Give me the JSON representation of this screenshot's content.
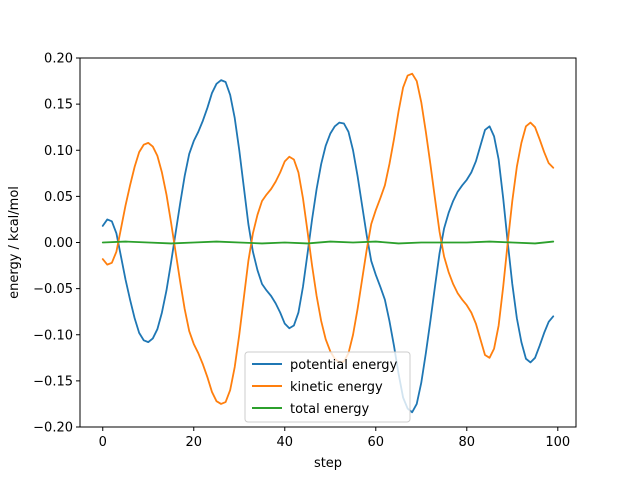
{
  "chart_data": {
    "type": "line",
    "title": "",
    "xlabel": "step",
    "ylabel": "energy / kcal/mol",
    "xlim": [
      -5,
      104
    ],
    "ylim": [
      -0.2,
      0.2
    ],
    "xticks": [
      0,
      20,
      40,
      60,
      80,
      100
    ],
    "yticks": [
      -0.2,
      -0.15,
      -0.1,
      -0.05,
      0.0,
      0.05,
      0.1,
      0.15,
      0.2
    ],
    "ytick_labels": [
      "−0.20",
      "−0.15",
      "−0.10",
      "−0.05",
      "0.00",
      "0.05",
      "0.10",
      "0.15",
      "0.20"
    ],
    "grid": false,
    "legend_position": "lower center",
    "series": [
      {
        "name": "potential energy",
        "color": "#1f77b4",
        "x": [
          0,
          1,
          2,
          3,
          4,
          5,
          6,
          7,
          8,
          9,
          10,
          11,
          12,
          13,
          14,
          15,
          16,
          17,
          18,
          19,
          20,
          21,
          22,
          23,
          24,
          25,
          26,
          27,
          28,
          29,
          30,
          31,
          32,
          33,
          34,
          35,
          36,
          37,
          38,
          39,
          40,
          41,
          42,
          43,
          44,
          45,
          46,
          47,
          48,
          49,
          50,
          51,
          52,
          53,
          54,
          55,
          56,
          57,
          58,
          59,
          60,
          61,
          62,
          63,
          64,
          65,
          66,
          67,
          68,
          69,
          70,
          71,
          72,
          73,
          74,
          75,
          76,
          77,
          78,
          79,
          80,
          81,
          82,
          83,
          84,
          85,
          86,
          87,
          88,
          89,
          90,
          91,
          92,
          93,
          94,
          95,
          96,
          97,
          98,
          99
        ],
        "values": [
          0.018,
          0.025,
          0.023,
          0.01,
          -0.015,
          -0.04,
          -0.062,
          -0.082,
          -0.098,
          -0.106,
          -0.108,
          -0.104,
          -0.094,
          -0.076,
          -0.052,
          -0.022,
          0.01,
          0.042,
          0.072,
          0.096,
          0.11,
          0.12,
          0.132,
          0.146,
          0.162,
          0.172,
          0.176,
          0.174,
          0.16,
          0.135,
          0.1,
          0.06,
          0.02,
          -0.01,
          -0.03,
          -0.045,
          -0.052,
          -0.058,
          -0.066,
          -0.076,
          -0.088,
          -0.093,
          -0.09,
          -0.076,
          -0.048,
          -0.012,
          0.025,
          0.058,
          0.085,
          0.105,
          0.118,
          0.126,
          0.13,
          0.129,
          0.12,
          0.1,
          0.072,
          0.04,
          0.008,
          -0.02,
          -0.035,
          -0.048,
          -0.062,
          -0.085,
          -0.112,
          -0.142,
          -0.168,
          -0.18,
          -0.184,
          -0.175,
          -0.152,
          -0.12,
          -0.085,
          -0.048,
          -0.012,
          0.015,
          0.032,
          0.045,
          0.055,
          0.062,
          0.068,
          0.076,
          0.088,
          0.105,
          0.122,
          0.126,
          0.115,
          0.09,
          0.048,
          0.0,
          -0.045,
          -0.082,
          -0.108,
          -0.126,
          -0.13,
          -0.125,
          -0.112,
          -0.098,
          -0.086,
          -0.08
        ]
      },
      {
        "name": "kinetic energy",
        "color": "#ff7f0e",
        "x": [
          0,
          1,
          2,
          3,
          4,
          5,
          6,
          7,
          8,
          9,
          10,
          11,
          12,
          13,
          14,
          15,
          16,
          17,
          18,
          19,
          20,
          21,
          22,
          23,
          24,
          25,
          26,
          27,
          28,
          29,
          30,
          31,
          32,
          33,
          34,
          35,
          36,
          37,
          38,
          39,
          40,
          41,
          42,
          43,
          44,
          45,
          46,
          47,
          48,
          49,
          50,
          51,
          52,
          53,
          54,
          55,
          56,
          57,
          58,
          59,
          60,
          61,
          62,
          63,
          64,
          65,
          66,
          67,
          68,
          69,
          70,
          71,
          72,
          73,
          74,
          75,
          76,
          77,
          78,
          79,
          80,
          81,
          82,
          83,
          84,
          85,
          86,
          87,
          88,
          89,
          90,
          91,
          92,
          93,
          94,
          95,
          96,
          97,
          98,
          99
        ],
        "values": [
          -0.018,
          -0.024,
          -0.022,
          -0.01,
          0.015,
          0.04,
          0.062,
          0.082,
          0.098,
          0.106,
          0.108,
          0.104,
          0.094,
          0.076,
          0.052,
          0.022,
          -0.01,
          -0.042,
          -0.072,
          -0.096,
          -0.11,
          -0.12,
          -0.132,
          -0.146,
          -0.162,
          -0.172,
          -0.175,
          -0.173,
          -0.16,
          -0.135,
          -0.1,
          -0.06,
          -0.02,
          0.01,
          0.03,
          0.045,
          0.052,
          0.058,
          0.066,
          0.076,
          0.088,
          0.093,
          0.09,
          0.076,
          0.048,
          0.012,
          -0.025,
          -0.058,
          -0.085,
          -0.105,
          -0.118,
          -0.126,
          -0.13,
          -0.129,
          -0.12,
          -0.1,
          -0.072,
          -0.04,
          -0.008,
          0.02,
          0.035,
          0.048,
          0.062,
          0.085,
          0.112,
          0.142,
          0.168,
          0.181,
          0.183,
          0.175,
          0.152,
          0.12,
          0.085,
          0.048,
          0.012,
          -0.015,
          -0.032,
          -0.045,
          -0.055,
          -0.062,
          -0.068,
          -0.076,
          -0.088,
          -0.105,
          -0.122,
          -0.125,
          -0.115,
          -0.09,
          -0.048,
          0.0,
          0.045,
          0.082,
          0.108,
          0.126,
          0.13,
          0.125,
          0.112,
          0.098,
          0.086,
          0.081
        ]
      },
      {
        "name": "total energy",
        "color": "#2ca02c",
        "x": [
          0,
          5,
          10,
          15,
          20,
          25,
          30,
          35,
          40,
          45,
          50,
          55,
          60,
          65,
          70,
          75,
          80,
          85,
          90,
          95,
          99
        ],
        "values": [
          0.0,
          0.001,
          0.0,
          -0.001,
          0.0,
          0.001,
          0.0,
          -0.001,
          0.0,
          -0.001,
          0.001,
          0.0,
          0.001,
          -0.001,
          0.0,
          0.0,
          0.0,
          0.001,
          0.0,
          -0.001,
          0.001
        ]
      }
    ]
  }
}
